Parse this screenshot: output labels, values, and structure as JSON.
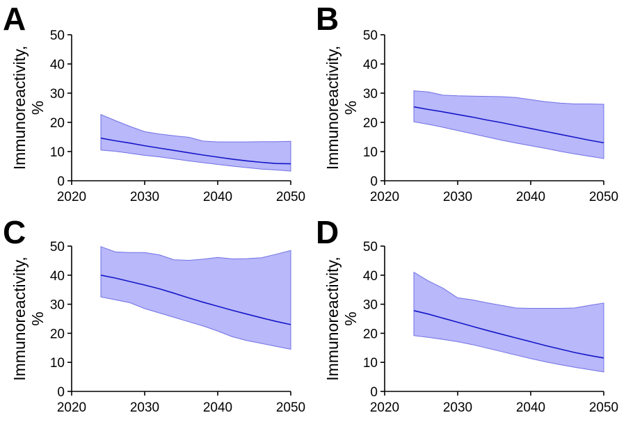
{
  "colors": {
    "band_fill": "#b8b8fa",
    "band_stroke": "#7070e6",
    "line": "#1515c8",
    "axis": "#000000"
  },
  "chart_data": [
    {
      "panel": "A",
      "type": "area",
      "ylabel": "Immunoreactivity, %",
      "xlabel": "",
      "xlim": [
        2020,
        2050
      ],
      "ylim": [
        0,
        50
      ],
      "xticks": [
        2020,
        2030,
        2040,
        2050
      ],
      "yticks": [
        0,
        10,
        20,
        30,
        40,
        50
      ],
      "grid": false,
      "x": [
        2024,
        2026,
        2028,
        2030,
        2032,
        2034,
        2036,
        2038,
        2040,
        2042,
        2044,
        2046,
        2048,
        2050
      ],
      "mean": [
        14.6,
        13.7,
        12.9,
        12.0,
        11.2,
        10.4,
        9.6,
        8.8,
        8.1,
        7.4,
        6.8,
        6.3,
        5.9,
        5.8
      ],
      "upper": [
        22.7,
        20.6,
        18.6,
        16.8,
        16.0,
        15.4,
        14.9,
        13.6,
        13.3,
        13.3,
        13.3,
        13.4,
        13.4,
        13.5
      ],
      "lower": [
        10.5,
        10.1,
        9.4,
        8.7,
        8.2,
        7.5,
        6.8,
        6.2,
        5.6,
        5.0,
        4.5,
        4.0,
        3.7,
        3.3
      ]
    },
    {
      "panel": "B",
      "type": "area",
      "ylabel": "Immunoreactivity, %",
      "xlabel": "",
      "xlim": [
        2020,
        2050
      ],
      "ylim": [
        0,
        50
      ],
      "xticks": [
        2020,
        2030,
        2040,
        2050
      ],
      "yticks": [
        0,
        10,
        20,
        30,
        40,
        50
      ],
      "grid": false,
      "x": [
        2024,
        2026,
        2028,
        2030,
        2032,
        2034,
        2036,
        2038,
        2040,
        2042,
        2044,
        2046,
        2048,
        2050
      ],
      "mean": [
        25.3,
        24.4,
        23.6,
        22.7,
        21.8,
        20.8,
        19.9,
        18.9,
        17.9,
        16.9,
        15.9,
        14.9,
        13.9,
        13.0
      ],
      "upper": [
        30.8,
        30.4,
        29.3,
        29.1,
        29.0,
        28.9,
        28.8,
        28.5,
        27.8,
        27.1,
        26.6,
        26.3,
        26.3,
        26.2
      ],
      "lower": [
        20.2,
        19.3,
        18.3,
        17.2,
        16.1,
        15.0,
        13.9,
        12.9,
        12.0,
        11.1,
        10.1,
        9.2,
        8.4,
        7.6
      ]
    },
    {
      "panel": "C",
      "type": "area",
      "ylabel": "Immunoreactivity, %",
      "xlabel": "",
      "xlim": [
        2020,
        2050
      ],
      "ylim": [
        0,
        50
      ],
      "xticks": [
        2020,
        2030,
        2040,
        2050
      ],
      "yticks": [
        0,
        10,
        20,
        30,
        40,
        50
      ],
      "grid": false,
      "x": [
        2024,
        2026,
        2028,
        2030,
        2032,
        2034,
        2036,
        2038,
        2040,
        2042,
        2044,
        2046,
        2048,
        2050
      ],
      "mean": [
        40.0,
        39.0,
        37.8,
        36.6,
        35.3,
        33.8,
        32.2,
        30.7,
        29.3,
        27.9,
        26.6,
        25.3,
        24.1,
        23.0
      ],
      "upper": [
        49.8,
        48.0,
        47.8,
        47.8,
        47.0,
        45.3,
        45.1,
        45.5,
        46.1,
        45.6,
        45.7,
        46.0,
        47.2,
        48.5
      ],
      "lower": [
        32.5,
        31.5,
        30.5,
        28.5,
        27.0,
        25.5,
        24.0,
        22.5,
        20.8,
        18.8,
        17.5,
        16.5,
        15.5,
        14.5
      ]
    },
    {
      "panel": "D",
      "type": "area",
      "ylabel": "Immunoreactivity, %",
      "xlabel": "",
      "xlim": [
        2020,
        2050
      ],
      "ylim": [
        0,
        50
      ],
      "xticks": [
        2020,
        2030,
        2040,
        2050
      ],
      "yticks": [
        0,
        10,
        20,
        30,
        40,
        50
      ],
      "grid": false,
      "x": [
        2024,
        2026,
        2028,
        2030,
        2032,
        2034,
        2036,
        2038,
        2040,
        2042,
        2044,
        2046,
        2048,
        2050
      ],
      "mean": [
        27.8,
        26.6,
        25.2,
        23.8,
        22.4,
        21.0,
        19.7,
        18.4,
        17.1,
        15.8,
        14.6,
        13.4,
        12.4,
        11.5
      ],
      "upper": [
        41.0,
        38.0,
        35.5,
        32.2,
        31.5,
        30.5,
        29.6,
        28.7,
        28.6,
        28.6,
        28.6,
        28.7,
        29.6,
        30.4
      ],
      "lower": [
        19.2,
        18.6,
        17.9,
        17.1,
        16.1,
        14.9,
        13.7,
        12.5,
        11.3,
        10.2,
        9.2,
        8.3,
        7.5,
        6.7
      ]
    }
  ]
}
